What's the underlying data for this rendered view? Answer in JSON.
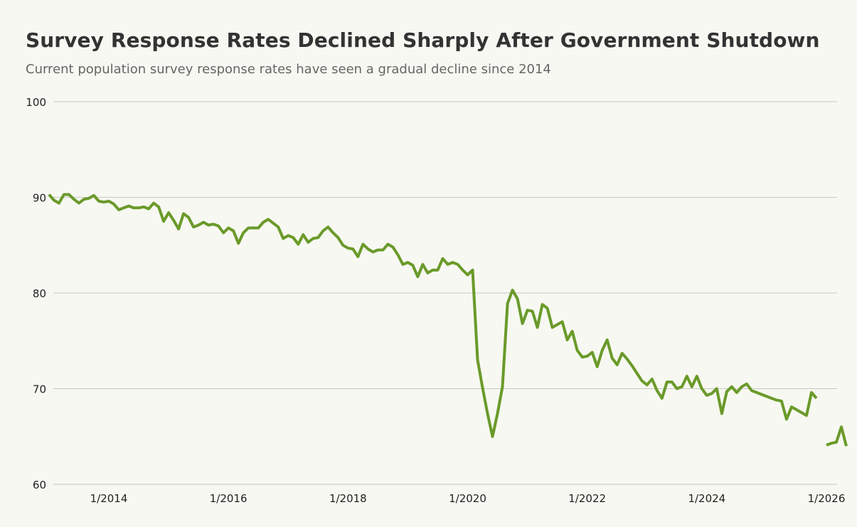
{
  "chart_data": {
    "type": "line",
    "title": "Survey Response Rates Declined Sharply After Government Shutdown",
    "subtitle": "Current population survey response rates have seen a gradual decline since 2014",
    "xlabel": "",
    "ylabel": "",
    "ylim": [
      60,
      100
    ],
    "xlim": [
      "2013-01",
      "2026-02"
    ],
    "grid": true,
    "legend": "none",
    "line_color": "#6a9a2a",
    "y_ticks": [
      "100",
      "90",
      "80",
      "70",
      "60"
    ],
    "x_ticks": [
      {
        "label": "1/2014",
        "date": "2014-01"
      },
      {
        "label": "1/2016",
        "date": "2016-01"
      },
      {
        "label": "1/2018",
        "date": "2018-01"
      },
      {
        "label": "1/2020",
        "date": "2020-01"
      },
      {
        "label": "1/2022",
        "date": "2022-01"
      },
      {
        "label": "1/2024",
        "date": "2024-01"
      },
      {
        "label": "1/2026",
        "date": "2026-01"
      }
    ],
    "series": [
      {
        "points": [
          [
            "2013-01",
            90.3
          ],
          [
            "2013-02",
            89.7
          ],
          [
            "2013-03",
            89.4
          ],
          [
            "2013-04",
            90.3
          ],
          [
            "2013-05",
            90.3
          ],
          [
            "2013-06",
            89.8
          ],
          [
            "2013-07",
            89.4
          ],
          [
            "2013-08",
            89.8
          ],
          [
            "2013-09",
            89.9
          ],
          [
            "2013-10",
            90.2
          ],
          [
            "2013-11",
            89.6
          ],
          [
            "2013-12",
            89.5
          ],
          [
            "2014-01",
            89.6
          ],
          [
            "2014-02",
            89.3
          ],
          [
            "2014-03",
            88.7
          ],
          [
            "2014-04",
            88.9
          ],
          [
            "2014-05",
            89.1
          ],
          [
            "2014-06",
            88.9
          ],
          [
            "2014-07",
            88.9
          ],
          [
            "2014-08",
            89.0
          ],
          [
            "2014-09",
            88.8
          ],
          [
            "2014-10",
            89.4
          ],
          [
            "2014-11",
            89.0
          ],
          [
            "2014-12",
            87.5
          ],
          [
            "2015-01",
            88.4
          ],
          [
            "2015-02",
            87.6
          ],
          [
            "2015-03",
            86.7
          ],
          [
            "2015-04",
            88.3
          ],
          [
            "2015-05",
            87.9
          ],
          [
            "2015-06",
            86.9
          ],
          [
            "2015-07",
            87.1
          ],
          [
            "2015-08",
            87.4
          ],
          [
            "2015-09",
            87.1
          ],
          [
            "2015-10",
            87.2
          ],
          [
            "2015-11",
            87.0
          ],
          [
            "2015-12",
            86.3
          ],
          [
            "2016-01",
            86.8
          ],
          [
            "2016-02",
            86.5
          ],
          [
            "2016-03",
            85.2
          ],
          [
            "2016-04",
            86.3
          ],
          [
            "2016-05",
            86.8
          ],
          [
            "2016-06",
            86.8
          ],
          [
            "2016-07",
            86.8
          ],
          [
            "2016-08",
            87.4
          ],
          [
            "2016-09",
            87.7
          ],
          [
            "2016-10",
            87.3
          ],
          [
            "2016-11",
            86.9
          ],
          [
            "2016-12",
            85.7
          ],
          [
            "2017-01",
            86.0
          ],
          [
            "2017-02",
            85.8
          ],
          [
            "2017-03",
            85.1
          ],
          [
            "2017-04",
            86.1
          ],
          [
            "2017-05",
            85.3
          ],
          [
            "2017-06",
            85.7
          ],
          [
            "2017-07",
            85.8
          ],
          [
            "2017-08",
            86.5
          ],
          [
            "2017-09",
            86.9
          ],
          [
            "2017-10",
            86.3
          ],
          [
            "2017-11",
            85.8
          ],
          [
            "2017-12",
            85.0
          ],
          [
            "2018-01",
            84.7
          ],
          [
            "2018-02",
            84.6
          ],
          [
            "2018-03",
            83.8
          ],
          [
            "2018-04",
            85.1
          ],
          [
            "2018-05",
            84.6
          ],
          [
            "2018-06",
            84.3
          ],
          [
            "2018-07",
            84.5
          ],
          [
            "2018-08",
            84.5
          ],
          [
            "2018-09",
            85.1
          ],
          [
            "2018-10",
            84.8
          ],
          [
            "2018-11",
            84.0
          ],
          [
            "2018-12",
            83.0
          ],
          [
            "2019-01",
            83.2
          ],
          [
            "2019-02",
            82.9
          ],
          [
            "2019-03",
            81.7
          ],
          [
            "2019-04",
            83.0
          ],
          [
            "2019-05",
            82.1
          ],
          [
            "2019-06",
            82.4
          ],
          [
            "2019-07",
            82.4
          ],
          [
            "2019-08",
            83.6
          ],
          [
            "2019-09",
            83.0
          ],
          [
            "2019-10",
            83.2
          ],
          [
            "2019-11",
            83.0
          ],
          [
            "2019-12",
            82.4
          ],
          [
            "2020-01",
            81.9
          ],
          [
            "2020-02",
            82.4
          ],
          [
            "2020-03",
            73.0
          ],
          [
            "2020-04",
            70.1
          ],
          [
            "2020-05",
            67.4
          ],
          [
            "2020-06",
            65.0
          ],
          [
            "2020-07",
            67.4
          ],
          [
            "2020-08",
            70.2
          ],
          [
            "2020-09",
            78.9
          ],
          [
            "2020-10",
            80.3
          ],
          [
            "2020-11",
            79.4
          ],
          [
            "2020-12",
            76.8
          ],
          [
            "2021-01",
            78.2
          ],
          [
            "2021-02",
            78.1
          ],
          [
            "2021-03",
            76.4
          ],
          [
            "2021-04",
            78.8
          ],
          [
            "2021-05",
            78.4
          ],
          [
            "2021-06",
            76.4
          ],
          [
            "2021-07",
            76.7
          ],
          [
            "2021-08",
            77.0
          ],
          [
            "2021-09",
            75.1
          ],
          [
            "2021-10",
            76.0
          ],
          [
            "2021-11",
            74.0
          ],
          [
            "2021-12",
            73.3
          ],
          [
            "2022-01",
            73.4
          ],
          [
            "2022-02",
            73.8
          ],
          [
            "2022-03",
            72.3
          ],
          [
            "2022-04",
            74.0
          ],
          [
            "2022-05",
            75.1
          ],
          [
            "2022-06",
            73.2
          ],
          [
            "2022-07",
            72.5
          ],
          [
            "2022-08",
            73.7
          ],
          [
            "2022-09",
            73.1
          ],
          [
            "2022-10",
            72.4
          ],
          [
            "2022-11",
            71.6
          ],
          [
            "2022-12",
            70.8
          ],
          [
            "2023-01",
            70.4
          ],
          [
            "2023-02",
            71.0
          ],
          [
            "2023-03",
            69.8
          ],
          [
            "2023-04",
            69.0
          ],
          [
            "2023-05",
            70.7
          ],
          [
            "2023-06",
            70.7
          ],
          [
            "2023-07",
            70.0
          ],
          [
            "2023-08",
            70.2
          ],
          [
            "2023-09",
            71.3
          ],
          [
            "2023-10",
            70.2
          ],
          [
            "2023-11",
            71.3
          ],
          [
            "2023-12",
            70.0
          ],
          [
            "2024-01",
            69.3
          ],
          [
            "2024-02",
            69.5
          ],
          [
            "2024-03",
            70.0
          ],
          [
            "2024-04",
            67.4
          ],
          [
            "2024-05",
            69.7
          ],
          [
            "2024-06",
            70.2
          ],
          [
            "2024-07",
            69.6
          ],
          [
            "2024-08",
            70.2
          ],
          [
            "2024-09",
            70.5
          ],
          [
            "2024-10",
            69.8
          ],
          [
            "2024-11",
            69.6
          ],
          [
            "2024-12",
            69.4
          ],
          [
            "2025-01",
            69.2
          ],
          [
            "2025-02",
            69.0
          ],
          [
            "2025-03",
            68.8
          ],
          [
            "2025-04",
            68.7
          ],
          [
            "2025-05",
            66.8
          ],
          [
            "2025-06",
            68.1
          ],
          [
            "2025-07",
            67.8
          ],
          [
            "2025-08",
            67.5
          ],
          [
            "2025-09",
            67.2
          ],
          [
            "2025-10",
            69.6
          ],
          [
            "2025-11",
            69.0
          ],
          [
            "2025-12",
            null
          ],
          [
            "2026-01",
            64.1
          ],
          [
            "2026-02",
            64.3
          ],
          [
            "2026-03",
            64.4
          ],
          [
            "2026-04",
            66.0
          ],
          [
            "2026-05",
            64.0
          ]
        ]
      }
    ]
  }
}
